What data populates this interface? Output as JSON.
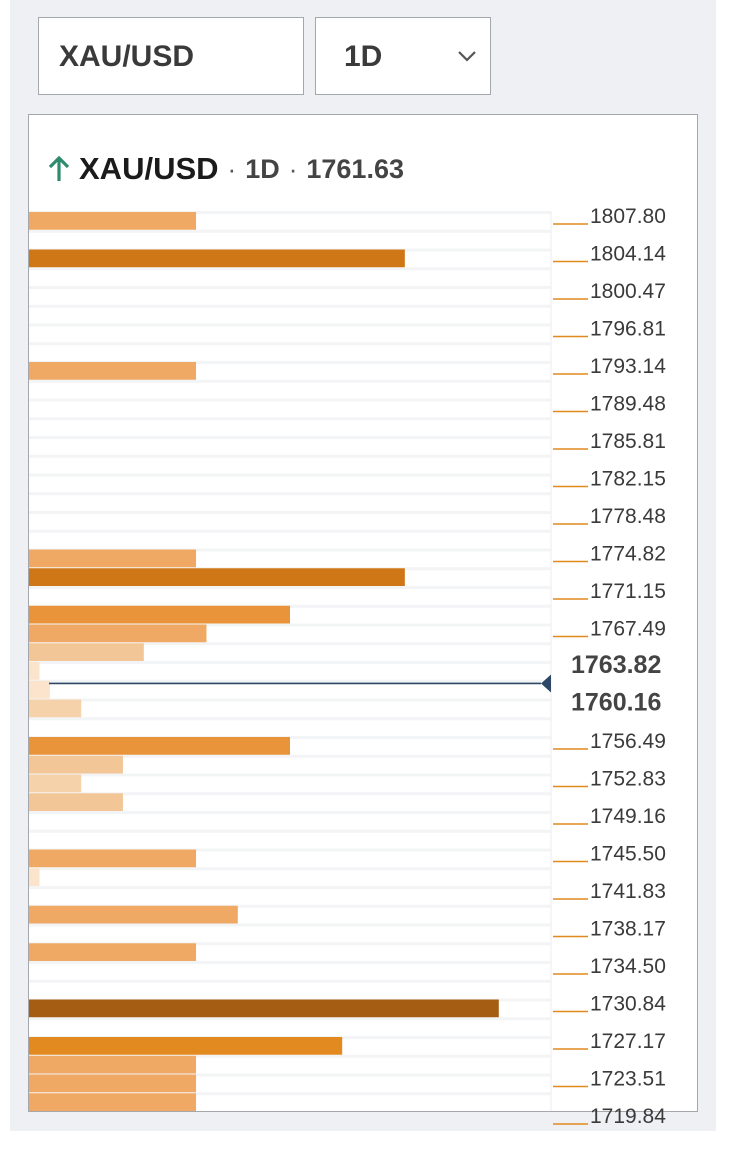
{
  "header": {
    "symbol": "XAU/USD",
    "timeframe": "1D",
    "dropdown_icon": "chevron-down-icon"
  },
  "chart_title": {
    "trend_icon": "arrow-up-icon",
    "symbol": "XAU/USD",
    "separator": "·",
    "timeframe": "1D",
    "price": "1761.63"
  },
  "colors": {
    "trend_up": "#2e8b6e",
    "tick": "#e08a1e",
    "price_line": "#2d4867",
    "row_stripe": "#f3f4f6"
  },
  "chart_data": {
    "type": "bar",
    "orientation": "horizontal",
    "title": "XAU/USD · 1D · 1761.63",
    "current_price": 1761.63,
    "current_range": [
      "1763.82",
      "1760.16"
    ],
    "price_levels": [
      "1807.80",
      "1804.14",
      "1800.47",
      "1796.81",
      "1793.14",
      "1789.48",
      "1785.81",
      "1782.15",
      "1778.48",
      "1774.82",
      "1771.15",
      "1767.49",
      "1763.82",
      "1760.16",
      "1756.49",
      "1752.83",
      "1749.16",
      "1745.50",
      "1741.83",
      "1738.17",
      "1734.50",
      "1730.84",
      "1727.17",
      "1723.51",
      "1719.84"
    ],
    "bars": [
      {
        "row": 1,
        "value": 16,
        "color": "#efa965"
      },
      {
        "row": 3,
        "value": 36,
        "color": "#cf7616"
      },
      {
        "row": 9,
        "value": 16,
        "color": "#efa965"
      },
      {
        "row": 19,
        "value": 16,
        "color": "#efa965"
      },
      {
        "row": 20,
        "value": 36,
        "color": "#cf7616"
      },
      {
        "row": 22,
        "value": 25,
        "color": "#e9943a"
      },
      {
        "row": 23,
        "value": 17,
        "color": "#efa965"
      },
      {
        "row": 24,
        "value": 11,
        "color": "#f3c698"
      },
      {
        "row": 25,
        "value": 1,
        "color": "#fbe3cc"
      },
      {
        "row": 26,
        "value": 2,
        "color": "#fbe3cc"
      },
      {
        "row": 27,
        "value": 5,
        "color": "#f6d2ab"
      },
      {
        "row": 29,
        "value": 25,
        "color": "#e9943a"
      },
      {
        "row": 30,
        "value": 9,
        "color": "#f3c698"
      },
      {
        "row": 31,
        "value": 5,
        "color": "#f6d2ab"
      },
      {
        "row": 32,
        "value": 9,
        "color": "#f3c698"
      },
      {
        "row": 35,
        "value": 16,
        "color": "#efa965"
      },
      {
        "row": 36,
        "value": 1,
        "color": "#fbe3cc"
      },
      {
        "row": 38,
        "value": 20,
        "color": "#efa965"
      },
      {
        "row": 40,
        "value": 16,
        "color": "#efa965"
      },
      {
        "row": 43,
        "value": 45,
        "color": "#a55c13"
      },
      {
        "row": 45,
        "value": 30,
        "color": "#e28a1f"
      },
      {
        "row": 46,
        "value": 16,
        "color": "#efa965"
      },
      {
        "row": 47,
        "value": 16,
        "color": "#efa965"
      },
      {
        "row": 48,
        "value": 16,
        "color": "#efa965"
      }
    ],
    "xlim": [
      0,
      50
    ],
    "grid": true
  }
}
